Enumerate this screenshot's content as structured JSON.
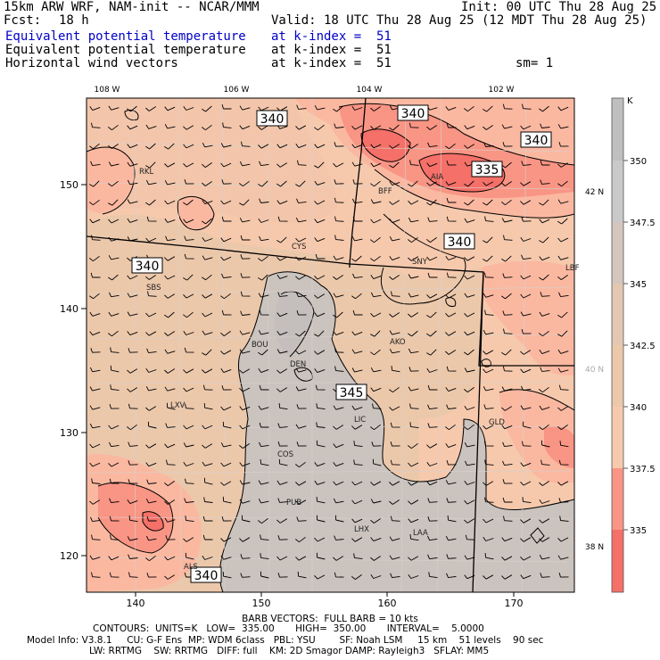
{
  "header": {
    "model": "15km ARW WRF, NAM-init -- NCAR/MMM",
    "init": "Init: 00 UTC Thu 28 Aug 25",
    "fcst_label": "Fcst:",
    "fcst_value": "18 h",
    "valid": "Valid: 18 UTC Thu 28 Aug 25 (12 MDT Thu 28 Aug 25)",
    "field1_name": "Equivalent potential temperature",
    "field1_level": "at k-index =  51",
    "field2_name": "Equivalent potential temperature",
    "field2_level": "at k-index =  51",
    "field3_name": "Horizontal wind vectors",
    "field3_level": "at k-index =  51",
    "smooth": "sm= 1"
  },
  "map": {
    "top_lon_labels": [
      "108 W",
      "106 W",
      "104 W",
      "102 W"
    ],
    "right_lat_labels": [
      "42 N",
      "40 N",
      "38 N"
    ],
    "left_y_labels": [
      "150",
      "140",
      "130",
      "120"
    ],
    "bottom_x_labels": [
      "140",
      "150",
      "160",
      "170"
    ],
    "contour_labels": [
      "340",
      "340",
      "340",
      "335",
      "340",
      "340",
      "345",
      "340"
    ],
    "stations": [
      "RKL",
      "AIA",
      "BFF",
      "CYS",
      "SNY",
      "SBS",
      "LBF",
      "AKO",
      "DEN",
      "BOU",
      "LXV",
      "LIC",
      "GLD",
      "COS",
      "PUB",
      "LHX",
      "LAA",
      "ALS"
    ]
  },
  "colorbar": {
    "unit": "K",
    "labels": [
      "350",
      "347.5",
      "345",
      "342.5",
      "340",
      "337.5",
      "335"
    ],
    "colors": [
      "#c9c9c9",
      "#d4c6bd",
      "#ecc8ab",
      "#f6c9ad",
      "#fbb8a1",
      "#f99585",
      "#f47068"
    ]
  },
  "footer": {
    "line1": "BARB VECTORS:  FULL BARB = 10 kts",
    "line2": "CONTOURS:  UNITS=K   LOW=  335.00       HIGH=  350.00       INTERVAL=    5.0000",
    "line3": "Model Info: V3.8.1     CU: G-F Ens  MP: WDM 6class   PBL: YSU        SF: Noah LSM     15 km    51 levels    90 sec",
    "line4": "LW: RRTMG    SW: RRTMG   DIFF: full    KM: 2D Smagor DAMP: Rayleigh3   SFLAY: MM5"
  }
}
